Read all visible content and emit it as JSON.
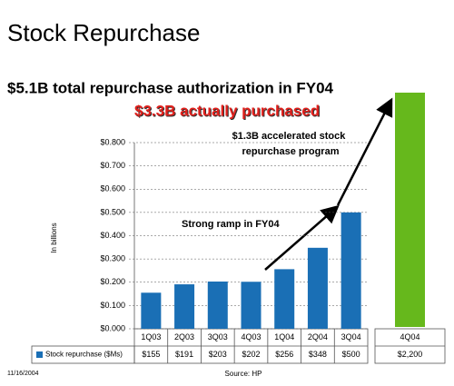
{
  "title": "Stock Repurchase",
  "headline": "$5.1B total repurchase authorization in FY04",
  "subheadline": "$3.3B actually purchased",
  "date": "11/16/2004",
  "source": "Source: HP",
  "chart_data": [
    {
      "type": "bar",
      "y_label": "In billions",
      "categories": [
        "1Q03",
        "2Q03",
        "3Q03",
        "4Q03",
        "1Q04",
        "2Q04",
        "3Q04"
      ],
      "series": [
        {
          "name": "Stock repurchase ($Ms)",
          "color": "#1a6fb5",
          "values": [
            0.155,
            0.191,
            0.203,
            0.202,
            0.256,
            0.348,
            0.5
          ],
          "value_labels": [
            "$155",
            "$191",
            "$203",
            "$202",
            "$256",
            "$348",
            "$500"
          ]
        }
      ],
      "ylim": [
        0,
        0.8
      ],
      "yticks": [
        {
          "value": 0,
          "label": "$0.000"
        },
        {
          "value": 0.1,
          "label": "$0.100"
        },
        {
          "value": 0.2,
          "label": "$0.200"
        },
        {
          "value": 0.3,
          "label": "$0.300"
        },
        {
          "value": 0.4,
          "label": "$0.400"
        },
        {
          "value": 0.5,
          "label": "$0.500"
        },
        {
          "value": 0.6,
          "label": "$0.600"
        },
        {
          "value": 0.7,
          "label": "$0.700"
        },
        {
          "value": 0.8,
          "label": "$0.800"
        }
      ],
      "grid": true,
      "annotations": [
        "$1.3B accelerated stock",
        "repurchase program",
        "Strong ramp in FY04"
      ]
    },
    {
      "type": "bar",
      "categories": [
        "4Q04"
      ],
      "values": [
        2200
      ],
      "value_labels": [
        "$2,200"
      ],
      "color": "#66b81c"
    }
  ]
}
